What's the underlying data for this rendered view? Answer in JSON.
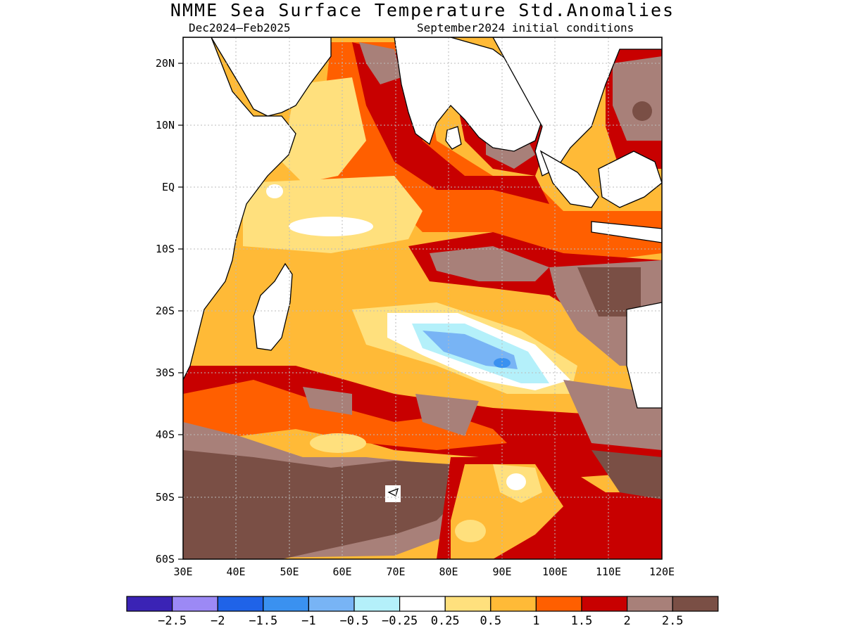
{
  "title": "NMME Sea Surface Temperature Std.Anomalies",
  "subtitle_left": "Dec2024–Feb2025",
  "subtitle_right": "September2024 initial conditions",
  "map": {
    "lon_labels": [
      "30E",
      "40E",
      "50E",
      "60E",
      "70E",
      "80E",
      "90E",
      "100E",
      "110E",
      "120E"
    ],
    "lat_labels": [
      "20N",
      "10N",
      "EQ",
      "10S",
      "20S",
      "30S",
      "40S",
      "50S",
      "60S"
    ]
  },
  "colorbar": {
    "colors": [
      "#3a23b5",
      "#9c89f5",
      "#1f63e8",
      "#3a91f0",
      "#78b4f5",
      "#b4f0fa",
      "#ffffff",
      "#ffe07d",
      "#ffba37",
      "#ff5f00",
      "#c80000",
      "#a88079",
      "#7a4f45"
    ],
    "labels": [
      "−2.5",
      "−2",
      "−1.5",
      "−1",
      "−0.5",
      "−0.25",
      "0.25",
      "0.5",
      "1",
      "1.5",
      "2",
      "2.5"
    ]
  }
}
